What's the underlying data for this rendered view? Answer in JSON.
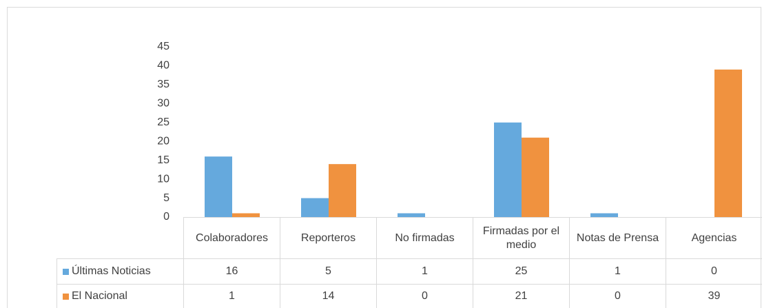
{
  "chart_data": {
    "type": "bar",
    "categories": [
      "Colaboradores",
      "Reporteros",
      "No firmadas",
      "Firmadas por el medio",
      "Notas de Prensa",
      "Agencias"
    ],
    "series": [
      {
        "name": "Últimas Noticias",
        "color": "#65a9dd",
        "values": [
          16,
          5,
          1,
          25,
          1,
          0
        ]
      },
      {
        "name": "El Nacional",
        "color": "#f0923f",
        "values": [
          1,
          14,
          0,
          21,
          0,
          39
        ]
      }
    ],
    "ylim": [
      0,
      45
    ],
    "yticks": [
      0,
      5,
      10,
      15,
      20,
      25,
      30,
      35,
      40,
      45
    ],
    "grid": false,
    "data_table": true
  }
}
